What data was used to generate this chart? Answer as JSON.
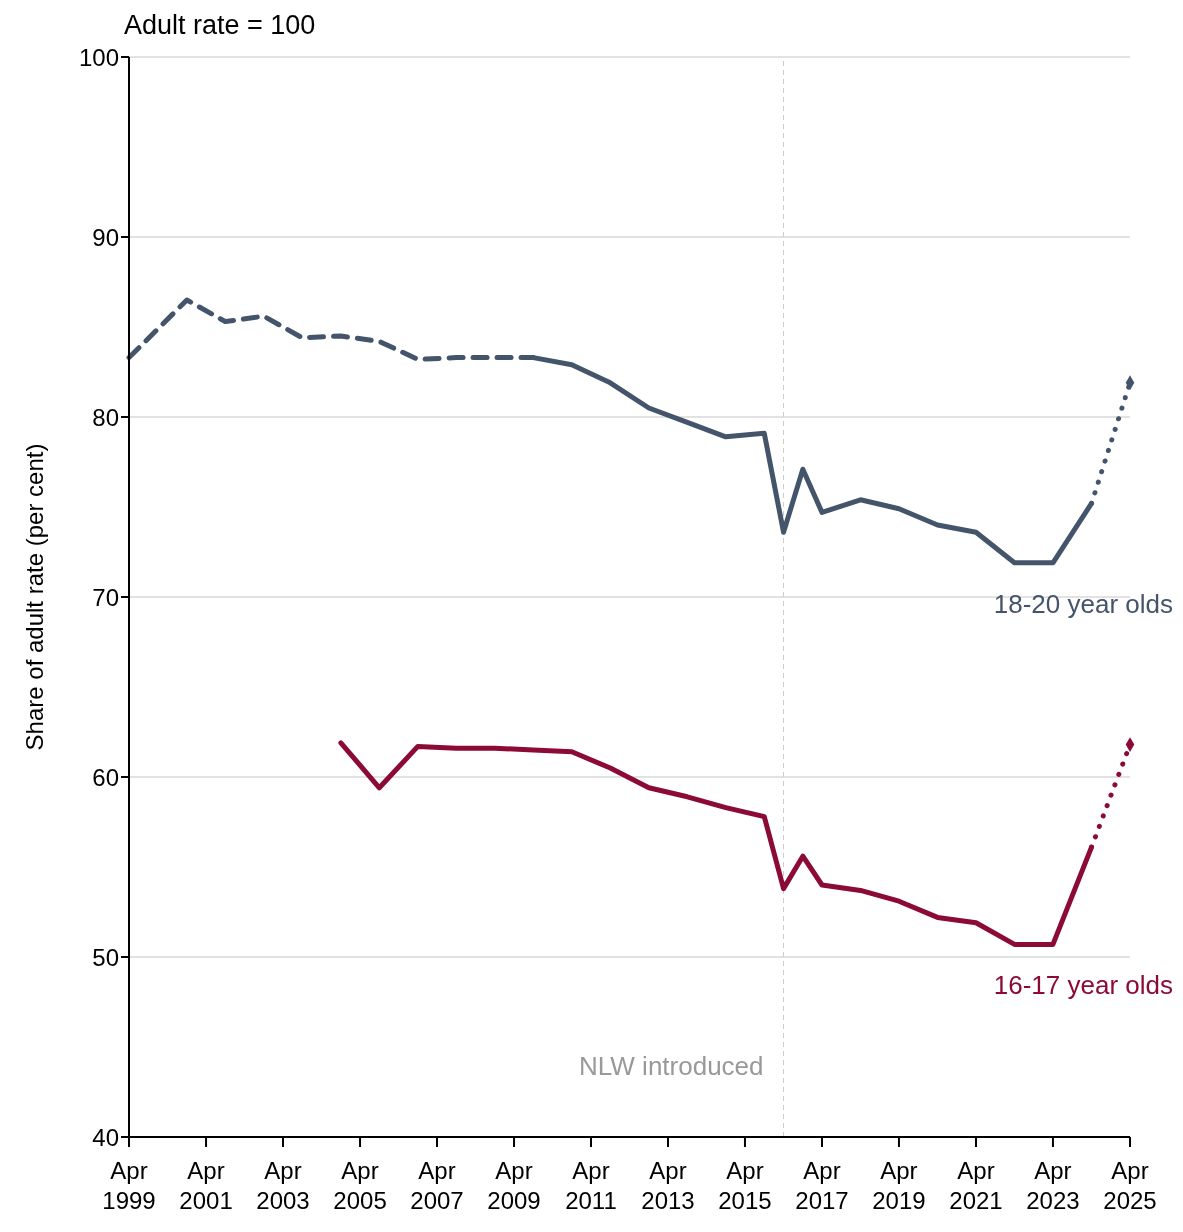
{
  "chart_data": {
    "type": "line",
    "annotations": [
      "Adult rate = 100"
    ],
    "ylabel": "Share of adult rate (per cent)",
    "xlim": [
      "1999-04",
      "2025-04"
    ],
    "xticks": [
      {
        "value": "1999-04",
        "label": "Apr 1999"
      },
      {
        "value": "2001-04",
        "label": "Apr 2001"
      },
      {
        "value": "2003-04",
        "label": "Apr 2003"
      },
      {
        "value": "2005-04",
        "label": "Apr 2005"
      },
      {
        "value": "2007-04",
        "label": "Apr 2007"
      },
      {
        "value": "2009-04",
        "label": "Apr 2009"
      },
      {
        "value": "2011-04",
        "label": "Apr 2011"
      },
      {
        "value": "2013-04",
        "label": "Apr 2013"
      },
      {
        "value": "2015-04",
        "label": "Apr 2015"
      },
      {
        "value": "2017-04",
        "label": "Apr 2017"
      },
      {
        "value": "2019-04",
        "label": "Apr 2019"
      },
      {
        "value": "2021-04",
        "label": "Apr 2021"
      },
      {
        "value": "2023-04",
        "label": "Apr 2023"
      },
      {
        "value": "2025-04",
        "label": "Apr 2025"
      }
    ],
    "ylim": [
      40,
      100
    ],
    "yticks": [
      40,
      50,
      60,
      70,
      80,
      90,
      100
    ],
    "grid": "y",
    "marker": "none",
    "series": [
      {
        "color": "#44546a",
        "line_style": "dashed",
        "x": [
          "1999-04",
          "2000-10",
          "2001-10",
          "2002-10",
          "2003-10",
          "2004-10",
          "2005-10",
          "2006-10",
          "2007-10",
          "2008-10",
          "2009-10"
        ],
        "values": [
          83.3,
          86.5,
          85.3,
          85.6,
          84.4,
          84.5,
          84.2,
          83.2,
          83.3,
          83.3,
          83.3
        ]
      },
      {
        "name": "18-20 year olds",
        "color": "#44546a",
        "line_style": "solid",
        "x": [
          "2009-10",
          "2010-10",
          "2011-10",
          "2012-10",
          "2013-10",
          "2014-10",
          "2015-10",
          "2016-04",
          "2016-10",
          "2017-04",
          "2018-04",
          "2019-04",
          "2020-04",
          "2021-04",
          "2022-04",
          "2023-04",
          "2024-04"
        ],
        "values": [
          83.3,
          82.9,
          81.9,
          80.5,
          79.7,
          78.9,
          79.1,
          73.6,
          77.1,
          74.7,
          75.4,
          74.9,
          74.0,
          73.6,
          71.9,
          71.9,
          75.2
        ]
      },
      {
        "color": "#44546a",
        "line_style": "dotted",
        "x": [
          "2024-04",
          "2025-04"
        ],
        "values": [
          75.2,
          81.9
        ]
      },
      {
        "type": "scatter",
        "marker": "diamond",
        "color": "#44546a",
        "x": [
          "2025-04"
        ],
        "values": [
          81.9
        ]
      },
      {
        "name": "16-17 year olds",
        "color": "#8b0a36",
        "line_style": "solid",
        "x": [
          "2004-10",
          "2005-10",
          "2006-10",
          "2007-10",
          "2008-10",
          "2009-10",
          "2010-10",
          "2011-10",
          "2012-10",
          "2013-10",
          "2014-10",
          "2015-10",
          "2016-04",
          "2016-10",
          "2017-04",
          "2018-04",
          "2019-04",
          "2020-04",
          "2021-04",
          "2022-04",
          "2023-04",
          "2024-04"
        ],
        "values": [
          61.9,
          59.4,
          61.7,
          61.6,
          61.6,
          61.5,
          61.4,
          60.5,
          59.4,
          58.9,
          58.3,
          57.8,
          53.8,
          55.6,
          54.0,
          53.7,
          53.1,
          52.2,
          51.9,
          50.7,
          50.7,
          56.1
        ]
      },
      {
        "color": "#8b0a36",
        "line_style": "dotted",
        "x": [
          "2024-04",
          "2025-04"
        ],
        "values": [
          56.1,
          61.8
        ]
      },
      {
        "type": "scatter",
        "marker": "diamond",
        "color": "#8b0a36",
        "x": [
          "2025-04"
        ],
        "values": [
          61.8
        ]
      }
    ],
    "ref_lines": [
      {
        "axis": "x",
        "value": "2016-04",
        "label": "NLW introduced",
        "color": "#cccccc",
        "line_style": "dashed"
      }
    ]
  }
}
